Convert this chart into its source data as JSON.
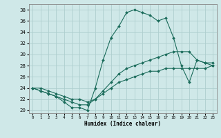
{
  "xlabel": "Humidex (Indice chaleur)",
  "xlim": [
    -0.5,
    23.5
  ],
  "ylim": [
    19.5,
    39
  ],
  "xticks": [
    0,
    1,
    2,
    3,
    4,
    5,
    6,
    7,
    8,
    9,
    10,
    11,
    12,
    13,
    14,
    15,
    16,
    17,
    18,
    19,
    20,
    21,
    22,
    23
  ],
  "yticks": [
    20,
    22,
    24,
    26,
    28,
    30,
    32,
    34,
    36,
    38
  ],
  "bg_color": "#cfe8e8",
  "line_color": "#1a6b5a",
  "grid_color": "#aecece",
  "line1_x": [
    0,
    1,
    2,
    3,
    4,
    5,
    6,
    7,
    8,
    9,
    10,
    11,
    12,
    13,
    14,
    15,
    16,
    17,
    18,
    19,
    20,
    21,
    22,
    23
  ],
  "line1_y": [
    24,
    23.5,
    23,
    22.5,
    21.5,
    20.5,
    20.5,
    20,
    24,
    29,
    33,
    35,
    37.5,
    38,
    37.5,
    37,
    36,
    36.5,
    33,
    28,
    25,
    29,
    28.5,
    28.5
  ],
  "line2_x": [
    0,
    1,
    2,
    3,
    4,
    5,
    6,
    7,
    8,
    9,
    10,
    11,
    12,
    13,
    14,
    15,
    16,
    17,
    18,
    19,
    20,
    21,
    22,
    23
  ],
  "line2_y": [
    24,
    23.5,
    23,
    22.5,
    22,
    21.5,
    21,
    21,
    22,
    23.5,
    25,
    26.5,
    27.5,
    28,
    28.5,
    29,
    29.5,
    30,
    30.5,
    30.5,
    30.5,
    29,
    28.5,
    28
  ],
  "line3_x": [
    0,
    1,
    2,
    3,
    4,
    5,
    6,
    7,
    8,
    9,
    10,
    11,
    12,
    13,
    14,
    15,
    16,
    17,
    18,
    19,
    20,
    21,
    22,
    23
  ],
  "line3_y": [
    24,
    24,
    23.5,
    23,
    22.5,
    22,
    22,
    21.5,
    22,
    23,
    24,
    25,
    25.5,
    26,
    26.5,
    27,
    27,
    27.5,
    27.5,
    27.5,
    27.5,
    27.5,
    27.5,
    28
  ]
}
